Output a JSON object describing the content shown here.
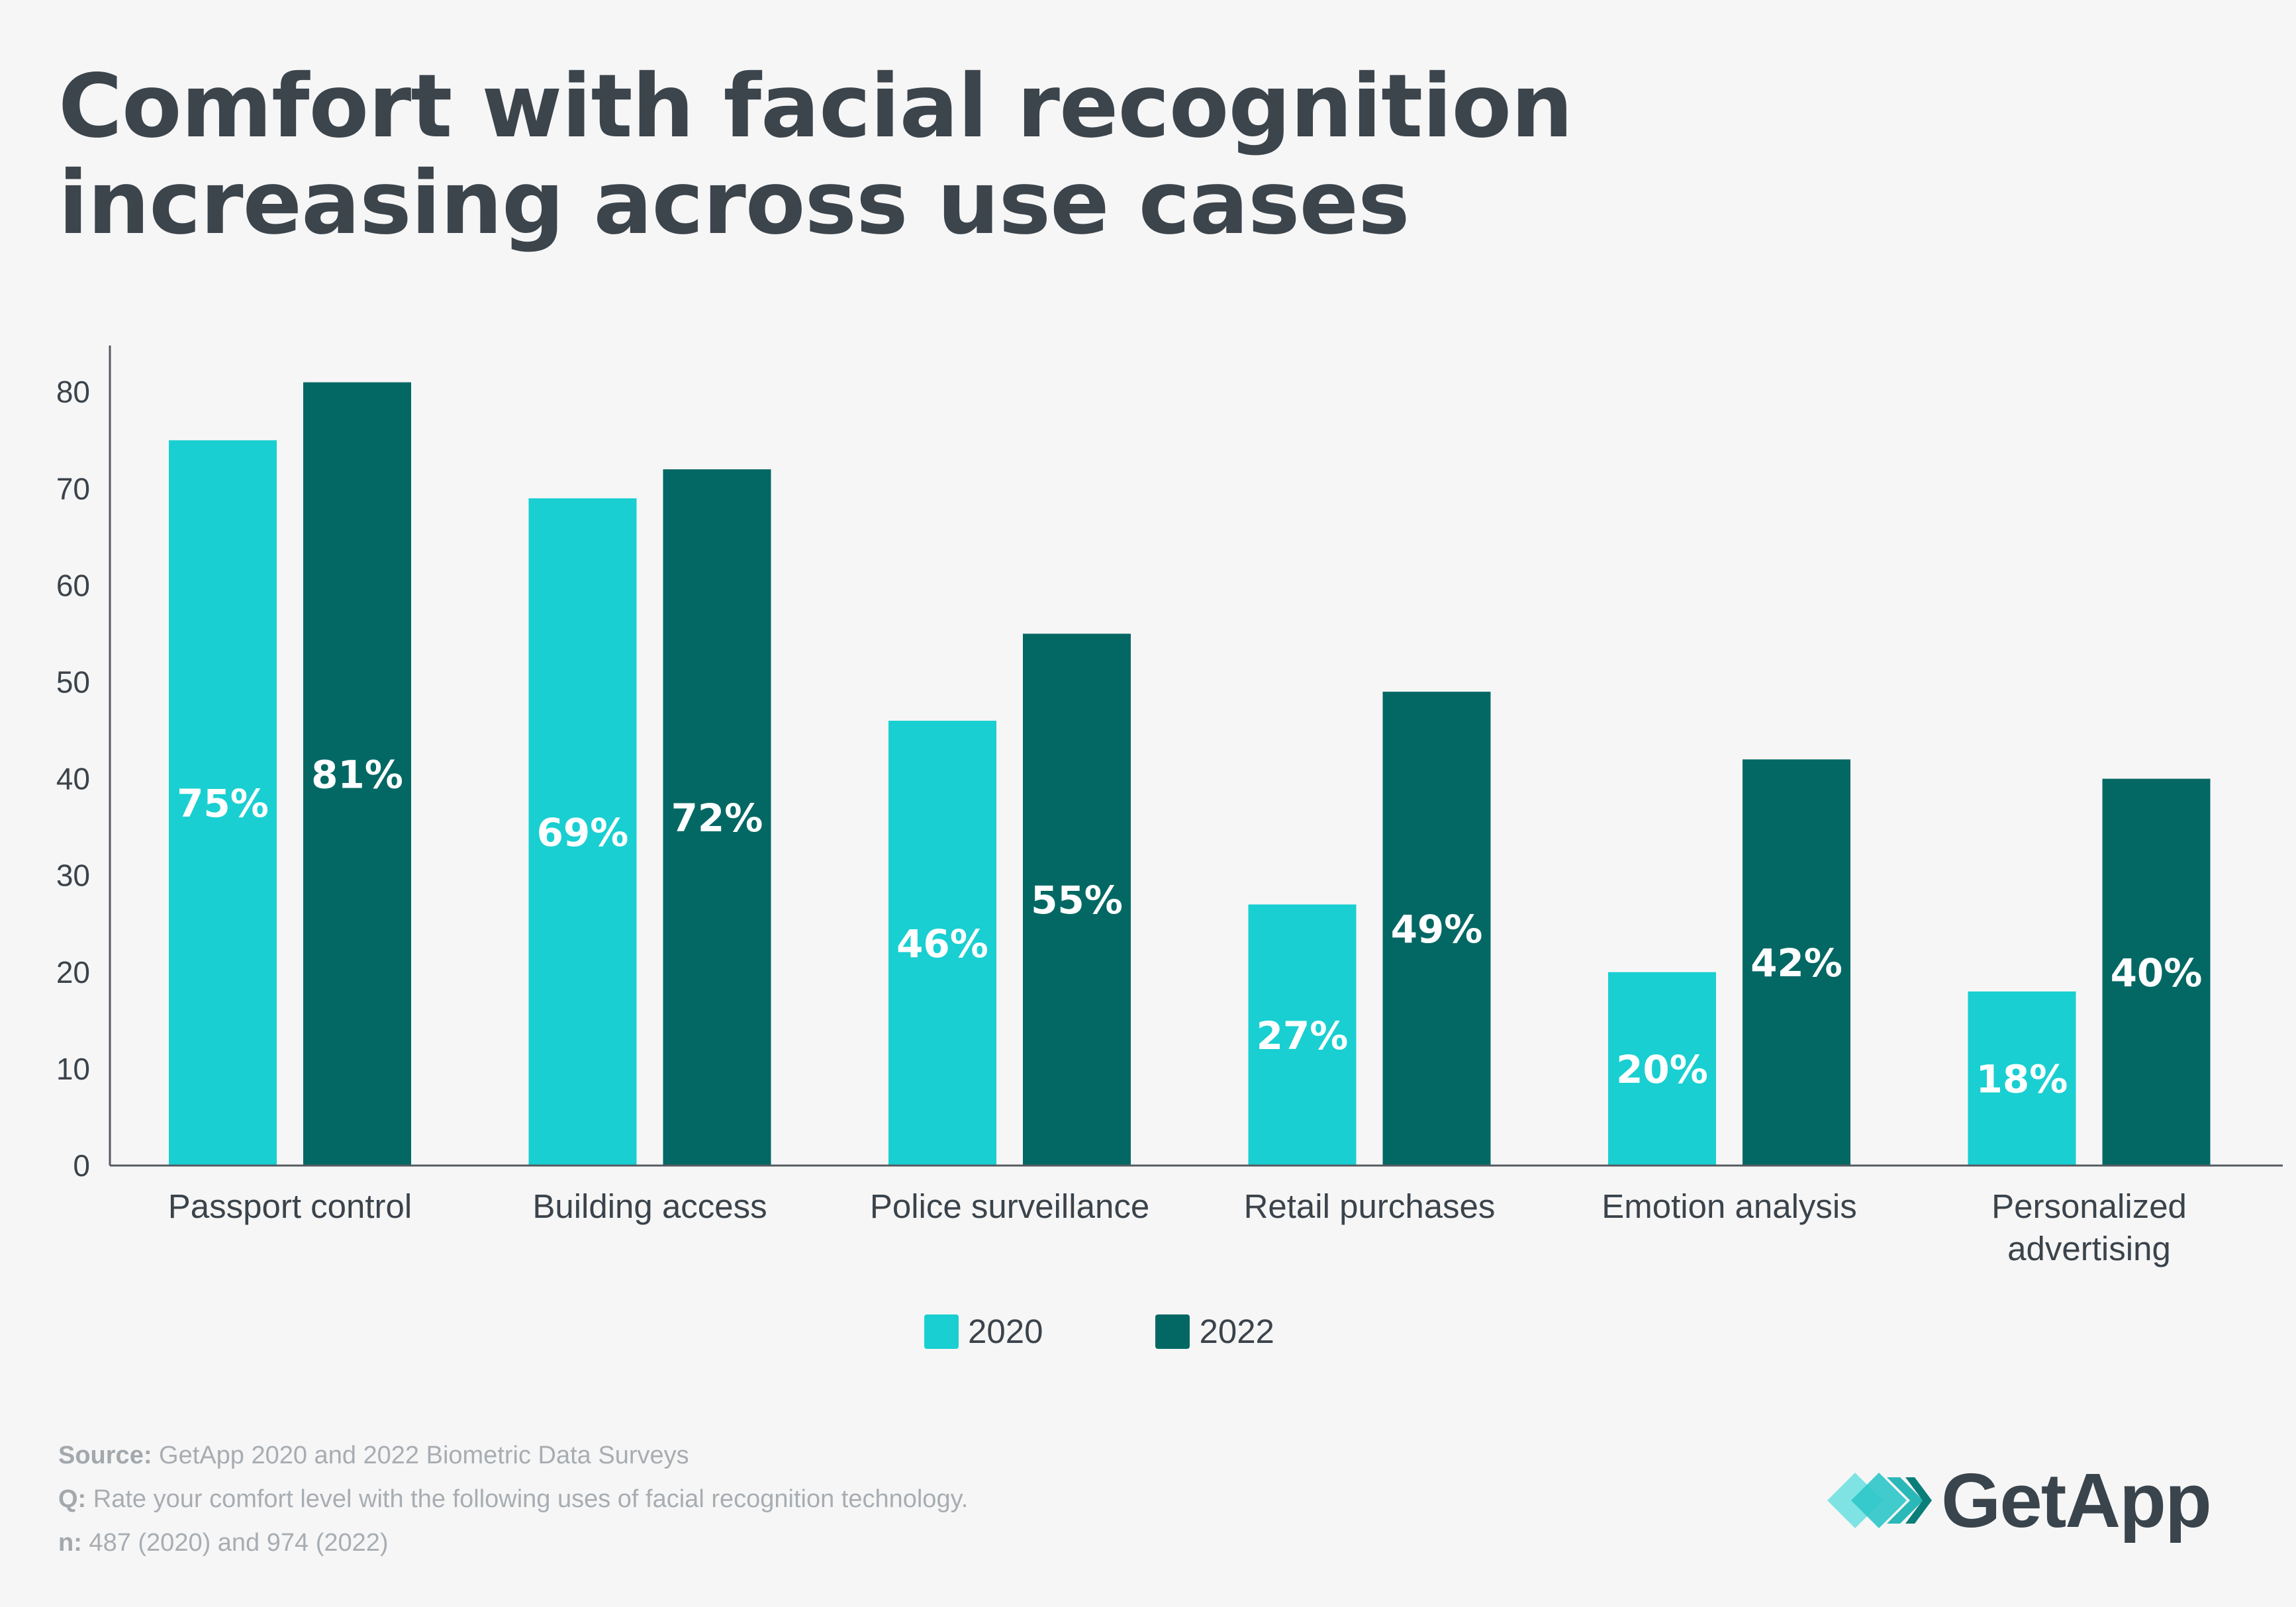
{
  "title": {
    "line1": "Comfort with facial recognition",
    "line2": "increasing across use cases"
  },
  "colors": {
    "series_2020": "#19cfd1",
    "series_2022": "#036864"
  },
  "chart_data": {
    "type": "bar",
    "title": "Comfort with facial recognition increasing across use cases",
    "categories": [
      [
        "Passport control"
      ],
      [
        "Building access"
      ],
      [
        "Police surveillance"
      ],
      [
        "Retail purchases"
      ],
      [
        "Emotion analysis"
      ],
      [
        "Personalized",
        "advertising"
      ]
    ],
    "series": [
      {
        "name": "2020",
        "values": [
          75,
          69,
          46,
          27,
          20,
          18
        ],
        "labels": [
          "75%",
          "69%",
          "46%",
          "27%",
          "20%",
          "18%"
        ]
      },
      {
        "name": "2022",
        "values": [
          81,
          72,
          55,
          49,
          42,
          40
        ],
        "labels": [
          "81%",
          "72%",
          "55%",
          "49%",
          "42%",
          "40%"
        ]
      }
    ],
    "yticks": [
      0,
      10,
      20,
      30,
      40,
      50,
      60,
      70,
      80
    ],
    "ylim": [
      0,
      85
    ],
    "xlabel": "",
    "ylabel": "",
    "legend": "bottom-center",
    "grid": false
  },
  "legend": {
    "items": [
      "2020",
      "2022"
    ]
  },
  "footer": {
    "source_label": "Source:",
    "source_text": " GetApp 2020 and 2022 Biometric Data Surveys",
    "q_label": "Q:",
    "q_text": " Rate your comfort level with the following uses of facial recognition technology.",
    "n_label": "n:",
    "n_text": " 487 (2020) and 974 (2022)"
  },
  "logo": {
    "text": "GetApp"
  }
}
